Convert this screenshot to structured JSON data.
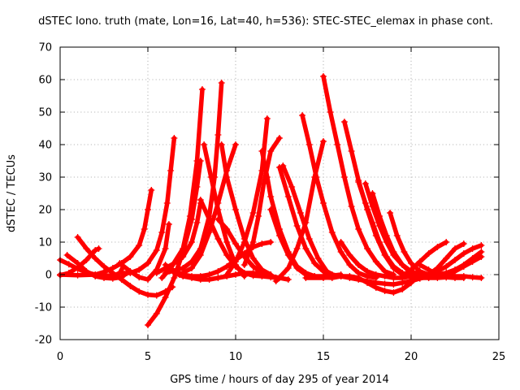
{
  "chart_data": {
    "type": "scatter",
    "title": "dSTEC Iono. truth (mate, Lon=16, Lat=40, h=536): STEC-STEC_elemax in phase cont.",
    "xlabel": "GPS time / hours of day 295 of year 2014",
    "ylabel": "dSTEC  / TECUs",
    "xlim": [
      0,
      25
    ],
    "ylim": [
      -20,
      70
    ],
    "xticks": [
      0,
      5,
      10,
      15,
      20,
      25
    ],
    "yticks": [
      -20,
      -10,
      0,
      10,
      20,
      30,
      40,
      50,
      60,
      70
    ],
    "xtick_labels": [
      "0",
      "5",
      "10",
      "15",
      "20",
      "25"
    ],
    "ytick_labels": [
      "-20",
      "-10",
      "0",
      "10",
      "20",
      "30",
      "40",
      "50",
      "60",
      "70"
    ],
    "grid": true,
    "marker": "plus",
    "color": "#ff0000",
    "series": [
      {
        "x": [
          0.0,
          0.5,
          1.0,
          1.5,
          2.0,
          2.5,
          3.0,
          3.4,
          3.6
        ],
        "y": [
          4.5,
          3.2,
          1.8,
          0.7,
          0.0,
          -0.2,
          -0.4,
          0.5,
          2.5
        ]
      },
      {
        "x": [
          0.0,
          0.5,
          1.0,
          1.5,
          2.0,
          2.2
        ],
        "y": [
          -0.2,
          0.5,
          2.2,
          4.5,
          7.5,
          8.0
        ]
      },
      {
        "x": [
          0.4,
          1.0,
          1.5,
          2.0,
          2.5,
          3.0,
          3.5,
          3.8
        ],
        "y": [
          6.0,
          3.5,
          1.0,
          -0.5,
          -1.0,
          -1.2,
          -0.8,
          0.5
        ]
      },
      {
        "x": [
          1.0,
          1.5,
          2.0,
          2.5,
          3.0,
          3.5,
          4.0,
          4.5,
          5.0,
          5.5,
          6.0,
          6.4
        ],
        "y": [
          11.5,
          8.0,
          5.0,
          2.5,
          0.5,
          -1.5,
          -3.5,
          -5.2,
          -6.2,
          -6.4,
          -5.2,
          -3.8
        ]
      },
      {
        "x": [
          0.0,
          1.0,
          2.0,
          2.5,
          3.0,
          3.5,
          4.0,
          4.5,
          4.8,
          5.0,
          5.2
        ],
        "y": [
          0.0,
          -0.2,
          0.0,
          0.8,
          2.0,
          3.5,
          5.5,
          9.0,
          14.0,
          20.0,
          26.0
        ]
      },
      {
        "x": [
          3.4,
          4.0,
          4.5,
          5.0,
          5.5,
          6.0,
          6.2
        ],
        "y": [
          3.5,
          1.0,
          -0.8,
          -1.5,
          1.5,
          8.0,
          15.5
        ]
      },
      {
        "x": [
          3.5,
          4.0,
          4.5,
          5.0,
          5.5,
          5.8,
          6.1,
          6.3,
          6.5
        ],
        "y": [
          0.5,
          0.5,
          1.5,
          3.5,
          7.5,
          13.0,
          22.0,
          32.0,
          42.0
        ]
      },
      {
        "x": [
          5.0,
          5.5,
          6.0,
          6.5,
          7.0,
          7.5,
          7.8,
          8.0
        ],
        "y": [
          -15.5,
          -12.0,
          -7.0,
          -1.0,
          7.0,
          17.0,
          27.0,
          35.0
        ]
      },
      {
        "x": [
          5.8,
          6.3,
          7.0,
          7.4,
          7.8,
          8.1
        ],
        "y": [
          -1.0,
          2.0,
          8.0,
          18.0,
          35.0,
          57.0
        ]
      },
      {
        "x": [
          6.0,
          6.5,
          7.0,
          7.5,
          8.0,
          8.5,
          9.0,
          9.5,
          10.0,
          10.5,
          11.0,
          11.5,
          12.0
        ],
        "y": [
          3.0,
          1.0,
          0.0,
          -0.5,
          -0.5,
          0.0,
          1.0,
          2.5,
          4.5,
          6.5,
          8.5,
          9.5,
          10.0
        ]
      },
      {
        "x": [
          5.5,
          6.0,
          6.5,
          7.0,
          7.5,
          7.8,
          8.0
        ],
        "y": [
          0.5,
          2.0,
          3.5,
          5.5,
          10.0,
          16.0,
          22.0
        ]
      },
      {
        "x": [
          6.0,
          7.0,
          7.5,
          8.0,
          8.5,
          8.8,
          9.0,
          9.2
        ],
        "y": [
          0.5,
          2.0,
          4.0,
          8.0,
          18.0,
          30.0,
          43.0,
          59.0
        ]
      },
      {
        "x": [
          6.8,
          7.5,
          8.0,
          8.5,
          9.0,
          9.5,
          10.0
        ],
        "y": [
          0.0,
          2.0,
          6.0,
          13.0,
          22.0,
          32.0,
          40.0
        ]
      },
      {
        "x": [
          8.0,
          8.5,
          9.0,
          9.5,
          10.0,
          10.5,
          11.0,
          11.5,
          12.0,
          12.3
        ],
        "y": [
          23.0,
          17.0,
          11.0,
          6.0,
          2.5,
          0.5,
          -0.3,
          -0.5,
          -0.8,
          -1.0
        ]
      },
      {
        "x": [
          8.2,
          8.6,
          9.0,
          9.5,
          10.0,
          10.5
        ],
        "y": [
          40.0,
          30.0,
          20.0,
          10.0,
          3.0,
          -0.5
        ]
      },
      {
        "x": [
          9.2,
          9.5,
          10.0,
          10.5,
          11.0,
          11.5,
          12.0
        ],
        "y": [
          40.0,
          30.0,
          20.0,
          11.0,
          5.0,
          1.5,
          0.0
        ]
      },
      {
        "x": [
          9.0,
          9.5,
          10.0,
          10.5,
          11.0,
          11.5,
          12.0
        ],
        "y": [
          17.0,
          14.0,
          9.5,
          5.5,
          2.5,
          0.5,
          0.0
        ]
      },
      {
        "x": [
          9.5,
          10.0,
          10.5,
          11.0,
          11.5,
          11.8
        ],
        "y": [
          0.0,
          4.0,
          10.0,
          19.0,
          32.0,
          48.0
        ]
      },
      {
        "x": [
          10.5,
          11.0,
          11.3,
          11.6,
          12.0,
          12.5
        ],
        "y": [
          3.0,
          10.0,
          18.0,
          28.0,
          38.0,
          42.0
        ]
      },
      {
        "x": [
          11.5,
          11.8,
          12.0,
          12.5,
          13.0,
          13.5,
          14.0,
          14.5,
          15.0,
          15.5,
          16.0
        ],
        "y": [
          38.0,
          30.0,
          24.0,
          14.0,
          7.0,
          2.5,
          0.5,
          -0.5,
          -0.5,
          -0.3,
          0.0
        ]
      },
      {
        "x": [
          12.0,
          12.5,
          13.0,
          13.5,
          14.0,
          14.5,
          15.0,
          15.5,
          16.0
        ],
        "y": [
          20.0,
          12.0,
          6.0,
          2.0,
          0.0,
          -0.5,
          -0.8,
          -1.0,
          -0.5
        ]
      },
      {
        "x": [
          12.5,
          13.0,
          13.5,
          14.0,
          14.5,
          15.0,
          15.5
        ],
        "y": [
          33.0,
          24.0,
          15.0,
          8.0,
          3.5,
          1.0,
          0.0
        ]
      },
      {
        "x": [
          12.7,
          13.2,
          13.7,
          14.2,
          14.7,
          15.2,
          15.7,
          16.0
        ],
        "y": [
          33.5,
          27.0,
          19.0,
          11.0,
          5.0,
          1.0,
          -0.5,
          -0.5
        ]
      },
      {
        "x": [
          12.3,
          13.0,
          13.5,
          14.0,
          14.5,
          15.0
        ],
        "y": [
          -2.0,
          2.0,
          8.0,
          16.0,
          30.0,
          41.0
        ]
      },
      {
        "x": [
          13.8,
          14.2,
          14.6,
          15.0,
          15.5,
          16.0,
          16.5,
          17.0,
          17.5,
          18.0
        ],
        "y": [
          49.0,
          40.0,
          30.0,
          22.0,
          13.0,
          7.0,
          3.0,
          0.5,
          -0.5,
          -1.0
        ]
      },
      {
        "x": [
          15.0,
          15.4,
          15.8,
          16.2,
          16.6,
          17.0,
          17.5,
          18.0,
          18.5,
          19.0
        ],
        "y": [
          61.0,
          50.0,
          40.0,
          30.0,
          21.0,
          14.0,
          8.0,
          4.0,
          1.0,
          0.0
        ]
      },
      {
        "x": [
          16.2,
          16.6,
          17.0,
          17.5,
          18.0,
          18.5,
          19.0,
          19.5,
          20.0,
          20.5
        ],
        "y": [
          47.0,
          38.0,
          29.0,
          20.0,
          12.0,
          6.0,
          2.0,
          0.0,
          -0.8,
          -1.0
        ]
      },
      {
        "x": [
          16.0,
          16.5,
          17.0,
          17.5,
          18.0,
          18.5,
          19.0,
          19.5,
          20.0
        ],
        "y": [
          10.0,
          6.0,
          3.0,
          1.0,
          0.0,
          -0.5,
          -1.0,
          -1.0,
          -0.5
        ]
      },
      {
        "x": [
          17.0,
          17.4,
          17.8,
          18.2,
          18.6,
          19.0,
          19.5,
          20.0,
          20.5,
          21.0
        ],
        "y": [
          28.5,
          22.0,
          16.0,
          10.0,
          5.5,
          2.5,
          0.5,
          -0.5,
          -1.0,
          -1.0
        ]
      },
      {
        "x": [
          17.4,
          17.8,
          18.2,
          18.6,
          19.0,
          19.5,
          20.0,
          20.5,
          21.0,
          21.5
        ],
        "y": [
          28.0,
          21.0,
          15.0,
          10.0,
          6.0,
          3.0,
          1.0,
          0.0,
          -0.5,
          -0.5
        ]
      },
      {
        "x": [
          17.8,
          18.2,
          18.6,
          19.0,
          19.5,
          20.0,
          20.5,
          21.0,
          21.5,
          22.0
        ],
        "y": [
          25.0,
          18.0,
          12.0,
          7.0,
          3.0,
          0.5,
          -0.5,
          -1.0,
          -1.0,
          -0.8
        ]
      },
      {
        "x": [
          18.8,
          19.2,
          19.6,
          20.0,
          20.5,
          21.0,
          21.5,
          22.0,
          22.5,
          23.0
        ],
        "y": [
          19.0,
          12.0,
          7.0,
          3.5,
          1.0,
          0.0,
          -0.5,
          -0.8,
          -1.0,
          -1.0
        ]
      },
      {
        "x": [
          14.0,
          15.0,
          16.0,
          16.5,
          17.0,
          17.5,
          18.0,
          18.5,
          19.0,
          19.5,
          20.0,
          20.5
        ],
        "y": [
          -1.0,
          -1.0,
          -0.5,
          -0.5,
          -1.0,
          -2.5,
          -4.0,
          -5.0,
          -5.5,
          -4.5,
          -2.5,
          0.0
        ]
      },
      {
        "x": [
          15.5,
          16.0,
          16.5,
          17.0,
          17.5,
          18.0,
          18.5,
          19.0,
          19.5,
          20.0,
          20.5,
          21.0,
          21.5,
          22.0
        ],
        "y": [
          0.0,
          -0.5,
          -1.0,
          -1.5,
          -2.0,
          -2.5,
          -2.8,
          -3.0,
          -2.5,
          -2.0,
          -1.2,
          -0.5,
          0.0,
          0.5
        ]
      },
      {
        "x": [
          19.5,
          20.0,
          20.5,
          21.0,
          21.5,
          22.0
        ],
        "y": [
          -0.5,
          1.5,
          4.0,
          6.5,
          8.5,
          10.0
        ]
      },
      {
        "x": [
          20.5,
          21.0,
          21.5,
          22.0,
          22.5,
          23.0,
          23.5,
          24.0
        ],
        "y": [
          -0.5,
          0.0,
          1.0,
          2.5,
          4.5,
          6.5,
          8.0,
          9.0
        ]
      },
      {
        "x": [
          21.0,
          21.5,
          22.0,
          22.5,
          23.0
        ],
        "y": [
          0.0,
          2.0,
          5.0,
          8.0,
          9.5
        ]
      },
      {
        "x": [
          21.5,
          22.0,
          22.5,
          23.0,
          23.5,
          24.0
        ],
        "y": [
          0.0,
          0.0,
          1.0,
          2.5,
          4.0,
          5.5
        ]
      },
      {
        "x": [
          20.5,
          21.0,
          21.5,
          22.0,
          22.5,
          23.0,
          23.5,
          24.0
        ],
        "y": [
          3.0,
          1.5,
          0.0,
          -0.5,
          -0.5,
          -0.5,
          -0.8,
          -1.0
        ]
      },
      {
        "x": [
          22.0,
          22.5,
          23.0,
          23.5,
          24.0
        ],
        "y": [
          0.5,
          1.5,
          3.0,
          5.0,
          7.0
        ]
      },
      {
        "x": [
          6.5,
          7.0,
          7.5,
          8.0,
          8.5,
          9.0,
          9.5,
          10.0,
          10.5,
          11.0,
          11.5,
          12.0,
          12.5,
          13.0
        ],
        "y": [
          0.5,
          -0.5,
          -1.0,
          -1.5,
          -1.5,
          -1.0,
          -0.5,
          0.0,
          0.5,
          0.5,
          0.0,
          -0.5,
          -1.0,
          -1.5
        ]
      }
    ]
  }
}
